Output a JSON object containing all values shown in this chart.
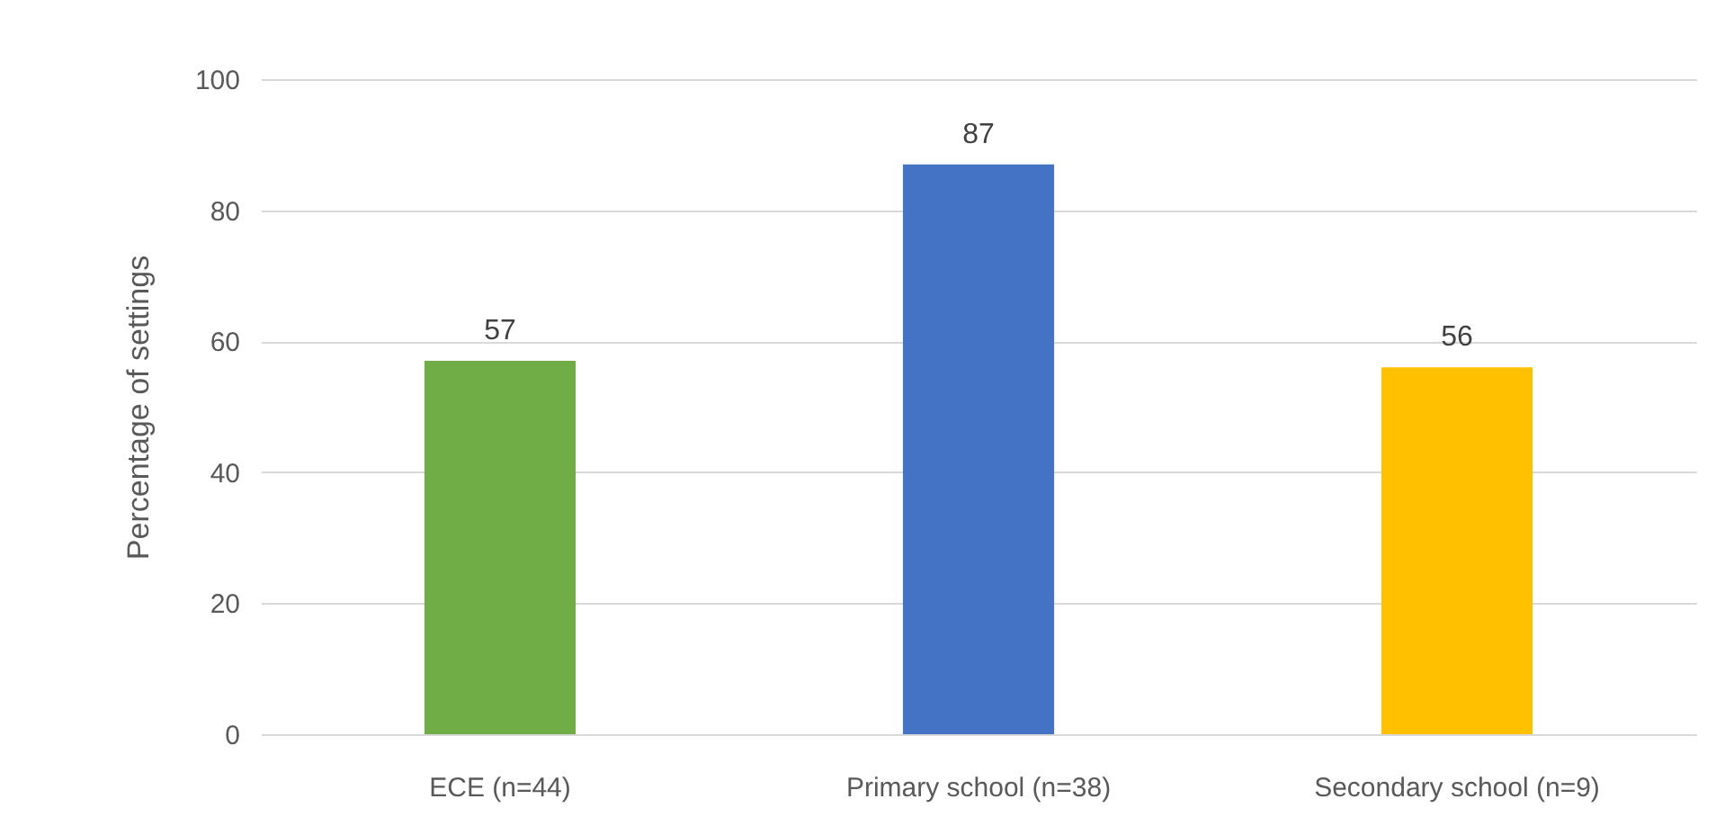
{
  "chart_data": {
    "type": "bar",
    "ylabel": "Percentage of settings",
    "categories": [
      "ECE (n=44)",
      "Primary school (n=38)",
      "Secondary school (n=9)"
    ],
    "values": [
      57,
      87,
      56
    ],
    "colors": [
      "#70ad47",
      "#4472c4",
      "#ffc000"
    ],
    "ylim": [
      0,
      100
    ],
    "yticks": [
      0,
      20,
      40,
      60,
      80,
      100
    ],
    "grid": "y",
    "data_labels": true
  }
}
